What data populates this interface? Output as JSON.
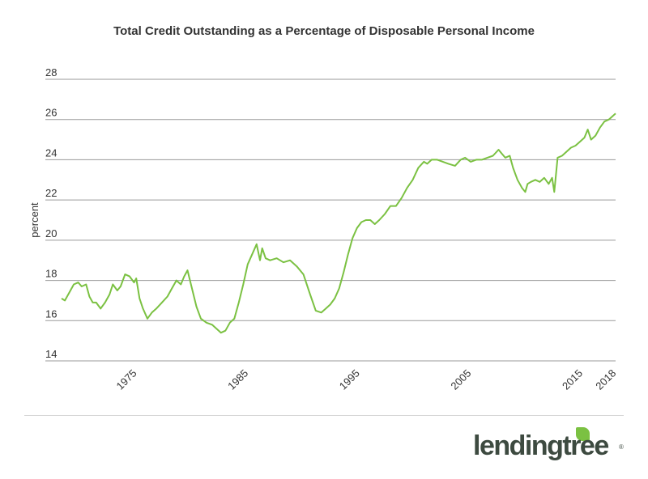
{
  "chart_data": {
    "type": "line",
    "title": "Total Credit Outstanding as a Percentage of Disposable Personal Income",
    "ylabel": "percent",
    "xlabel": "",
    "ylim": [
      14,
      28
    ],
    "xlim": [
      1968.5,
      2018.2
    ],
    "yticks": [
      "14",
      "16",
      "18",
      "20",
      "22",
      "24",
      "26",
      "28"
    ],
    "xticks": [
      {
        "label": "1975",
        "value": 1975
      },
      {
        "label": "1985",
        "value": 1985
      },
      {
        "label": "1995",
        "value": 1995
      },
      {
        "label": "2005",
        "value": 2005
      },
      {
        "label": "2015",
        "value": 2015
      },
      {
        "label": "2018",
        "value": 2018
      }
    ],
    "grid": true,
    "line_color": "#7bc142",
    "series": [
      {
        "name": "",
        "x": [
          1968.5,
          1968.8,
          1969.2,
          1969.6,
          1970.0,
          1970.3,
          1970.7,
          1971.0,
          1971.3,
          1971.6,
          1972.0,
          1972.4,
          1972.8,
          1973.1,
          1973.5,
          1973.8,
          1974.2,
          1974.6,
          1975.0,
          1975.2,
          1975.5,
          1975.8,
          1976.2,
          1976.6,
          1977.0,
          1977.5,
          1978.0,
          1978.4,
          1978.8,
          1979.2,
          1979.5,
          1979.8,
          1980.2,
          1980.6,
          1981.0,
          1981.5,
          1982.0,
          1982.4,
          1982.8,
          1983.2,
          1983.6,
          1984.0,
          1984.4,
          1984.8,
          1985.2,
          1985.6,
          1986.0,
          1986.3,
          1986.5,
          1986.8,
          1987.2,
          1987.8,
          1988.4,
          1989.0,
          1989.6,
          1990.2,
          1990.8,
          1991.3,
          1991.8,
          1992.2,
          1992.6,
          1993.0,
          1993.4,
          1993.8,
          1994.2,
          1994.6,
          1995.0,
          1995.4,
          1995.8,
          1996.2,
          1996.6,
          1997.0,
          1997.5,
          1998.0,
          1998.5,
          1999.0,
          1999.5,
          2000.0,
          2000.5,
          2001.0,
          2001.3,
          2001.7,
          2002.2,
          2002.7,
          2003.2,
          2003.8,
          2004.3,
          2004.7,
          2005.2,
          2005.7,
          2006.2,
          2006.7,
          2007.2,
          2007.7,
          2008.0,
          2008.3,
          2008.7,
          2009.0,
          2009.4,
          2009.8,
          2010.1,
          2010.3,
          2010.6,
          2011.0,
          2011.4,
          2011.8,
          2012.2,
          2012.5,
          2012.7,
          2013.0,
          2013.4,
          2013.8,
          2014.2,
          2014.6,
          2015.0,
          2015.4,
          2015.7,
          2016.0,
          2016.4,
          2016.8,
          2017.2,
          2017.6,
          2018.0,
          2018.2
        ],
        "values": [
          17.1,
          17.0,
          17.4,
          17.8,
          17.9,
          17.7,
          17.8,
          17.2,
          16.9,
          16.9,
          16.6,
          16.9,
          17.3,
          17.8,
          17.5,
          17.7,
          18.3,
          18.2,
          17.9,
          18.1,
          17.1,
          16.6,
          16.1,
          16.4,
          16.6,
          16.9,
          17.2,
          17.6,
          18.0,
          17.8,
          18.2,
          18.5,
          17.6,
          16.7,
          16.1,
          15.9,
          15.8,
          15.6,
          15.4,
          15.5,
          15.9,
          16.1,
          16.9,
          17.8,
          18.8,
          19.3,
          19.8,
          19.0,
          19.6,
          19.1,
          19.0,
          19.1,
          18.9,
          19.0,
          18.7,
          18.3,
          17.3,
          16.5,
          16.4,
          16.6,
          16.8,
          17.1,
          17.6,
          18.4,
          19.3,
          20.1,
          20.6,
          20.9,
          21.0,
          21.0,
          20.8,
          21.0,
          21.3,
          21.7,
          21.7,
          22.1,
          22.6,
          23.0,
          23.6,
          23.9,
          23.8,
          24.0,
          24.0,
          23.9,
          23.8,
          23.7,
          24.0,
          24.1,
          23.9,
          24.0,
          24.0,
          24.1,
          24.2,
          24.5,
          24.3,
          24.1,
          24.2,
          23.6,
          23.0,
          22.6,
          22.4,
          22.8,
          22.9,
          23.0,
          22.9,
          23.1,
          22.8,
          23.1,
          22.4,
          24.1,
          24.2,
          24.4,
          24.6,
          24.7,
          24.9,
          25.1,
          25.5,
          25.0,
          25.2,
          25.6,
          25.9,
          26.0,
          26.2,
          26.3
        ]
      }
    ]
  },
  "logo": {
    "text": "lendingtree",
    "registered": "®"
  }
}
